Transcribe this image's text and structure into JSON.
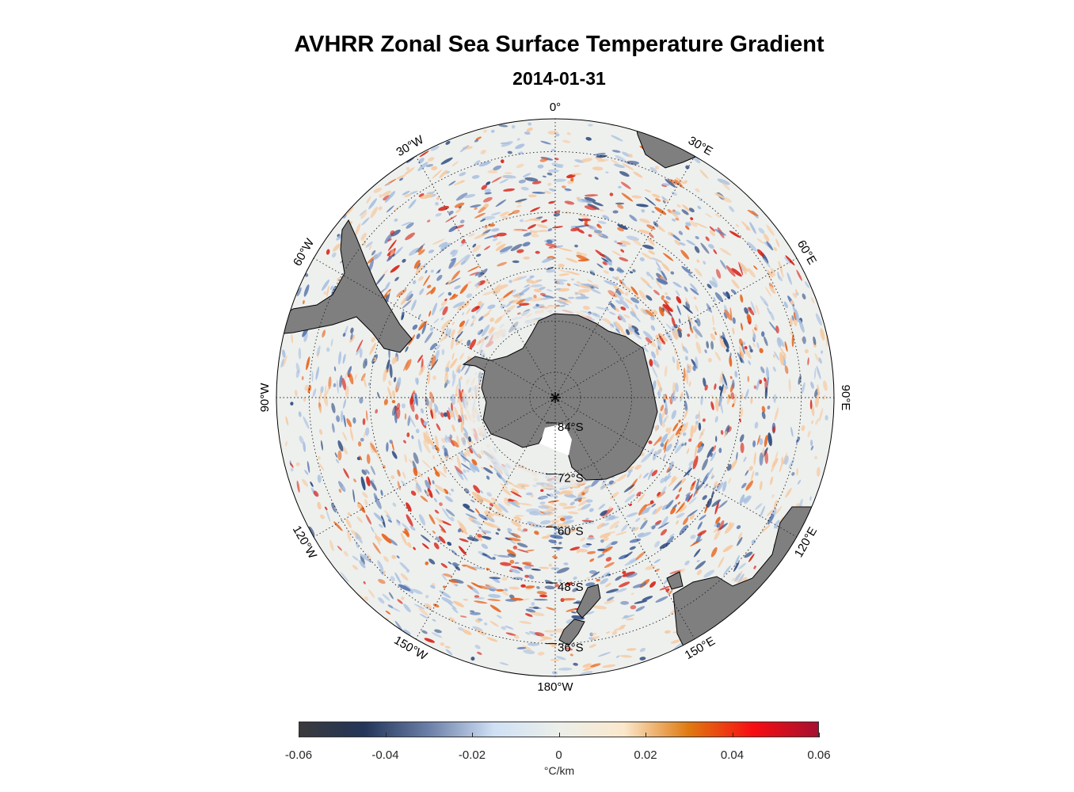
{
  "title": "AVHRR Zonal Sea Surface Temperature Gradient",
  "subtitle": "2014-01-31",
  "map": {
    "projection": "south polar stereographic",
    "meridian_labels": [
      {
        "lon": 0,
        "text": "0°"
      },
      {
        "lon": 30,
        "text": "30°E"
      },
      {
        "lon": 60,
        "text": "60°E"
      },
      {
        "lon": 90,
        "text": "90°E"
      },
      {
        "lon": 120,
        "text": "120°E"
      },
      {
        "lon": 150,
        "text": "150°E"
      },
      {
        "lon": 180,
        "text": "180°W"
      },
      {
        "lon": -150,
        "text": "150°W"
      },
      {
        "lon": -120,
        "text": "120°W"
      },
      {
        "lon": -90,
        "text": "90°W"
      },
      {
        "lon": -60,
        "text": "60°W"
      },
      {
        "lon": -30,
        "text": "30°W"
      }
    ],
    "parallel_labels": [
      {
        "lat": -84,
        "text": "84°S"
      },
      {
        "lat": -72,
        "text": "72°S"
      },
      {
        "lat": -60,
        "text": "60°S"
      },
      {
        "lat": -48,
        "text": "48°S"
      },
      {
        "lat": -36,
        "text": "36°S"
      }
    ],
    "outer_lat": -30,
    "land_color": "#7f7f7f"
  },
  "colorbar": {
    "min": -0.06,
    "max": 0.06,
    "ticks": [
      "-0.06",
      "-0.04",
      "-0.02",
      "0",
      "0.02",
      "0.04",
      "0.06"
    ],
    "label": "°C/km",
    "colors": [
      "#3a3a3c",
      "#233559",
      "#6b80a8",
      "#cfe0f5",
      "#ecefea",
      "#fbe8cc",
      "#e07a10",
      "#f70d12",
      "#a51130"
    ]
  }
}
